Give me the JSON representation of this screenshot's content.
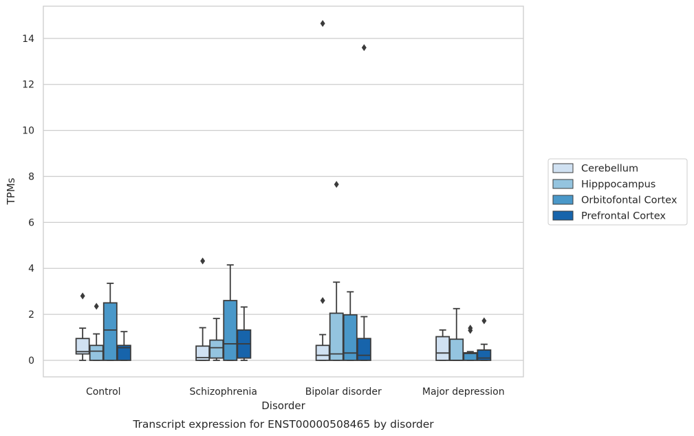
{
  "chart_data": {
    "type": "box",
    "caption": "Transcript expression for ENST00000508465 by disorder",
    "xlabel": "Disorder",
    "ylabel": "TPMs",
    "ylim": [
      -0.7,
      15.4
    ],
    "yticks": [
      0,
      2,
      4,
      6,
      8,
      10,
      12,
      14
    ],
    "grid": "horizontal",
    "legend_position": "right",
    "categories": [
      "Control",
      "Schizophrenia",
      "Bipolar disorder",
      "Major depression"
    ],
    "series": [
      {
        "name": "Cerebellum",
        "color": "#d0e1f2",
        "boxes": [
          {
            "whislo": 0.0,
            "q1": 0.28,
            "med": 0.38,
            "q3": 0.95,
            "whishi": 1.4,
            "fliers": [
              2.8
            ]
          },
          {
            "whislo": 0.0,
            "q1": 0.0,
            "med": 0.12,
            "q3": 0.62,
            "whishi": 1.42,
            "fliers": [
              4.32
            ]
          },
          {
            "whislo": 0.0,
            "q1": 0.0,
            "med": 0.22,
            "q3": 0.65,
            "whishi": 1.12,
            "fliers": [
              2.6,
              14.65
            ]
          },
          {
            "whislo": 0.0,
            "q1": 0.0,
            "med": 0.32,
            "q3": 1.03,
            "whishi": 1.32,
            "fliers": []
          }
        ]
      },
      {
        "name": "Hipppocampus",
        "color": "#94c4df",
        "boxes": [
          {
            "whislo": 0.0,
            "q1": 0.0,
            "med": 0.4,
            "q3": 0.65,
            "whishi": 1.15,
            "fliers": [
              2.35
            ]
          },
          {
            "whislo": 0.0,
            "q1": 0.1,
            "med": 0.55,
            "q3": 0.88,
            "whishi": 1.82,
            "fliers": []
          },
          {
            "whislo": 0.0,
            "q1": 0.0,
            "med": 0.28,
            "q3": 2.05,
            "whishi": 3.4,
            "fliers": [
              7.65
            ]
          },
          {
            "whislo": 0.0,
            "q1": 0.0,
            "med": 0.0,
            "q3": 0.92,
            "whishi": 2.25,
            "fliers": []
          }
        ]
      },
      {
        "name": "Orbitofontal Cortex",
        "color": "#4a98c9",
        "boxes": [
          {
            "whislo": 0.0,
            "q1": 0.0,
            "med": 1.32,
            "q3": 2.5,
            "whishi": 3.35,
            "fliers": []
          },
          {
            "whislo": 0.0,
            "q1": 0.0,
            "med": 0.72,
            "q3": 2.6,
            "whishi": 4.15,
            "fliers": []
          },
          {
            "whislo": 0.0,
            "q1": 0.0,
            "med": 0.32,
            "q3": 1.98,
            "whishi": 2.98,
            "fliers": []
          },
          {
            "whislo": 0.0,
            "q1": 0.0,
            "med": 0.3,
            "q3": 0.33,
            "whishi": 0.38,
            "fliers": [
              1.3,
              1.4
            ]
          }
        ]
      },
      {
        "name": "Prefrontal Cortex",
        "color": "#1764ab",
        "boxes": [
          {
            "whislo": 0.0,
            "q1": 0.0,
            "med": 0.55,
            "q3": 0.65,
            "whishi": 1.25,
            "fliers": []
          },
          {
            "whislo": 0.0,
            "q1": 0.1,
            "med": 0.72,
            "q3": 1.32,
            "whishi": 2.32,
            "fliers": []
          },
          {
            "whislo": 0.0,
            "q1": 0.0,
            "med": 0.22,
            "q3": 0.95,
            "whishi": 1.9,
            "fliers": [
              13.6
            ]
          },
          {
            "whislo": 0.0,
            "q1": 0.0,
            "med": 0.1,
            "q3": 0.45,
            "whishi": 0.7,
            "fliers": [
              1.72
            ]
          }
        ]
      }
    ]
  }
}
